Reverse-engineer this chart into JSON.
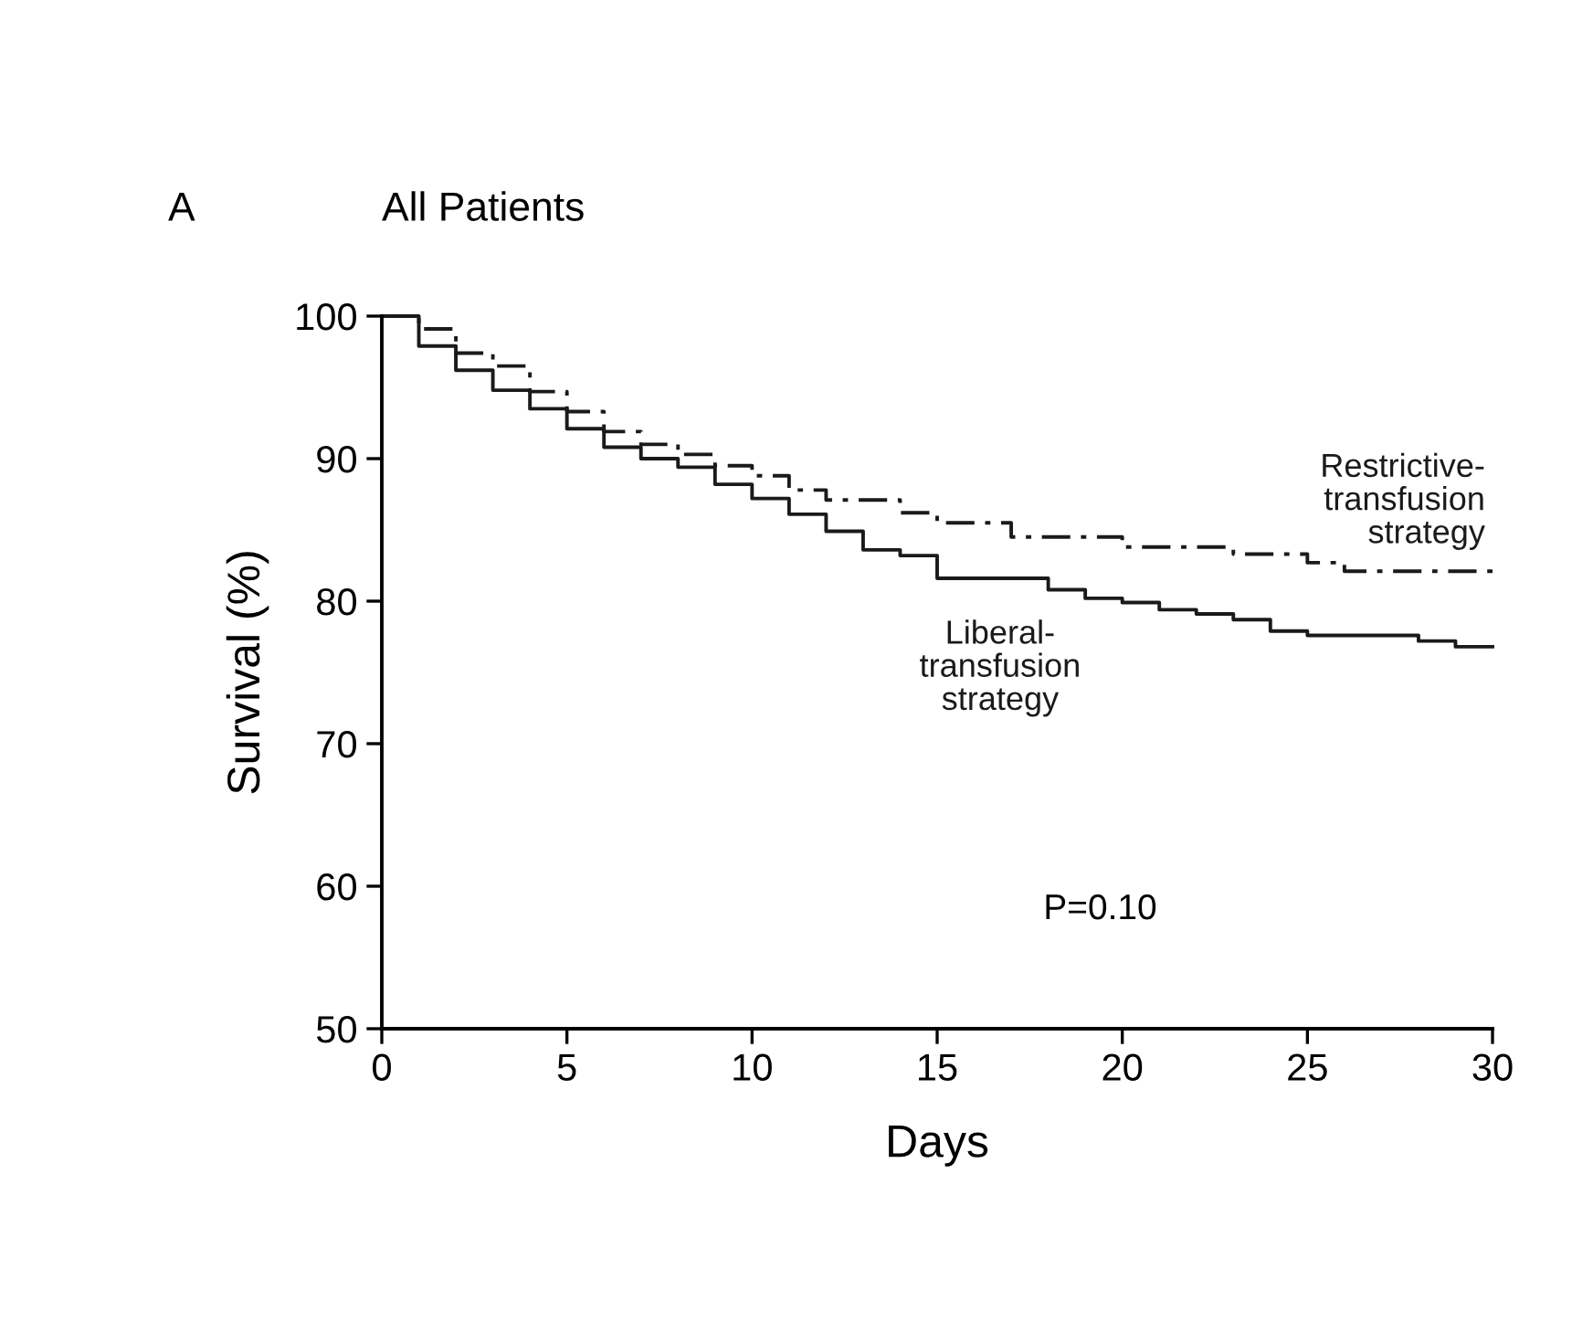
{
  "chart_data": {
    "type": "step",
    "title": "All Patients",
    "xlabel": "Days",
    "ylabel": "Survival (%)",
    "xlim": [
      0,
      30
    ],
    "xticks": [
      0,
      5,
      10,
      15,
      20,
      25,
      30
    ],
    "ylim": [
      50,
      100
    ],
    "yticks": [
      50,
      60,
      70,
      80,
      90,
      100
    ],
    "grid": false,
    "legend": false,
    "marker": "none",
    "series": [
      {
        "name": "Restrictive-\ntransfusion\nstrategy",
        "color": "#1a1a1a",
        "line_style": "dashdot",
        "x": [
          0,
          1,
          2,
          3,
          4,
          5,
          6,
          7,
          8,
          9,
          10,
          11,
          12,
          14,
          15,
          17,
          20,
          23,
          25,
          26,
          30
        ],
        "values": [
          100,
          99.1,
          97.4,
          96.5,
          94.7,
          93.3,
          91.9,
          91.0,
          90.3,
          89.5,
          88.8,
          87.8,
          87.1,
          86.2,
          85.5,
          84.5,
          83.8,
          83.3,
          82.7,
          82.1,
          82.1
        ]
      },
      {
        "name": "Liberal-\ntransfusion\nstrategy",
        "color": "#1a1a1a",
        "line_style": "solid",
        "x": [
          0,
          1,
          2,
          3,
          4,
          5,
          6,
          7,
          8,
          9,
          10,
          11,
          12,
          13,
          14,
          15,
          18,
          19,
          20,
          21,
          22,
          23,
          24,
          25,
          28,
          29,
          30
        ],
        "values": [
          100,
          97.9,
          96.2,
          94.8,
          93.5,
          92.1,
          90.8,
          90.0,
          89.4,
          88.2,
          87.2,
          86.1,
          84.9,
          83.6,
          83.2,
          81.6,
          80.8,
          80.2,
          79.9,
          79.4,
          79.1,
          78.7,
          77.9,
          77.6,
          77.2,
          76.8,
          76.8
        ]
      }
    ],
    "annotations": [
      "A",
      "P=0.10"
    ]
  }
}
